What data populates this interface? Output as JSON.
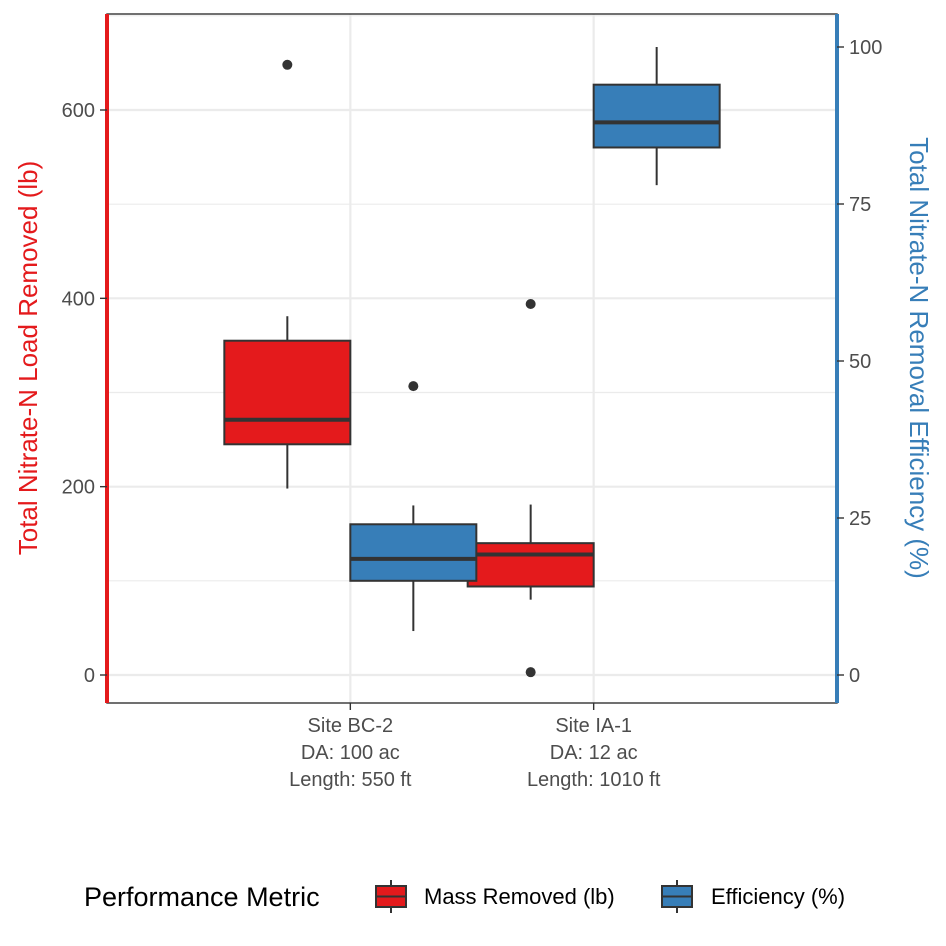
{
  "chart_data": {
    "type": "boxplot",
    "categories": [
      [
        "Site BC-2",
        "DA: 100 ac",
        "Length: 550 ft"
      ],
      [
        "Site IA-1",
        "DA: 12 ac",
        "Length: 1010 ft"
      ]
    ],
    "ylabel_left": "Total Nitrate-N Load Removed (lb)",
    "ylabel_right": "Total Nitrate-N Removal Efficiency (%)",
    "ylim_left": [
      -30,
      700
    ],
    "ylim_right": [
      -4.29,
      100
    ],
    "yticks_left": [
      0,
      200,
      400,
      600
    ],
    "yticks_right": [
      0,
      25,
      50,
      75,
      100
    ],
    "legend": {
      "title": "Performance Metric",
      "position": "bottom"
    },
    "series": [
      {
        "name": "Mass Removed (lb)",
        "axis": "left",
        "color": "#e41a1c",
        "boxes": [
          {
            "category": 0,
            "whisker_low": 198,
            "q1": 245,
            "median": 271,
            "q3": 355,
            "whisker_high": 381,
            "outliers": [
              648
            ]
          },
          {
            "category": 1,
            "whisker_low": 80,
            "q1": 94,
            "median": 128,
            "q3": 140,
            "whisker_high": 181,
            "outliers": [
              394,
              3
            ]
          }
        ]
      },
      {
        "name": "Efficiency (%)",
        "axis": "right",
        "color": "#377eb8",
        "boxes": [
          {
            "category": 0,
            "whisker_low": 7,
            "q1": 15,
            "median": 18.5,
            "q3": 24,
            "whisker_high": 27,
            "outliers": [
              46
            ]
          },
          {
            "category": 1,
            "whisker_low": 78,
            "q1": 84,
            "median": 88,
            "q3": 94,
            "whisker_high": 100,
            "outliers": []
          }
        ]
      }
    ]
  }
}
